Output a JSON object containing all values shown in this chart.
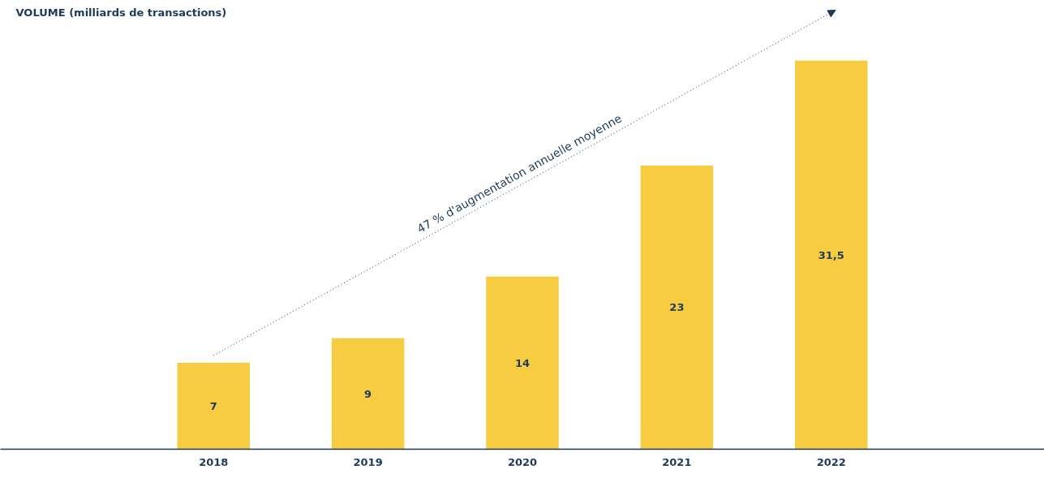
{
  "chart_data": {
    "type": "bar",
    "title": "VOLUME (milliards de transactions)",
    "categories": [
      "2018",
      "2019",
      "2020",
      "2021",
      "2022"
    ],
    "series": [
      {
        "color": "#f8cc40",
        "values": [
          7,
          9,
          14,
          23,
          31.5
        ],
        "value_labels": [
          "7",
          "9",
          "14",
          "23",
          "31,5"
        ]
      },
      {
        "type": "line",
        "color": "#1b3a5a",
        "line_style": "dotted",
        "values": [
          7.6,
          null,
          null,
          null,
          35.4
        ]
      }
    ],
    "annotations": [
      "47 % d'augmentation annuelle moyenne"
    ]
  }
}
